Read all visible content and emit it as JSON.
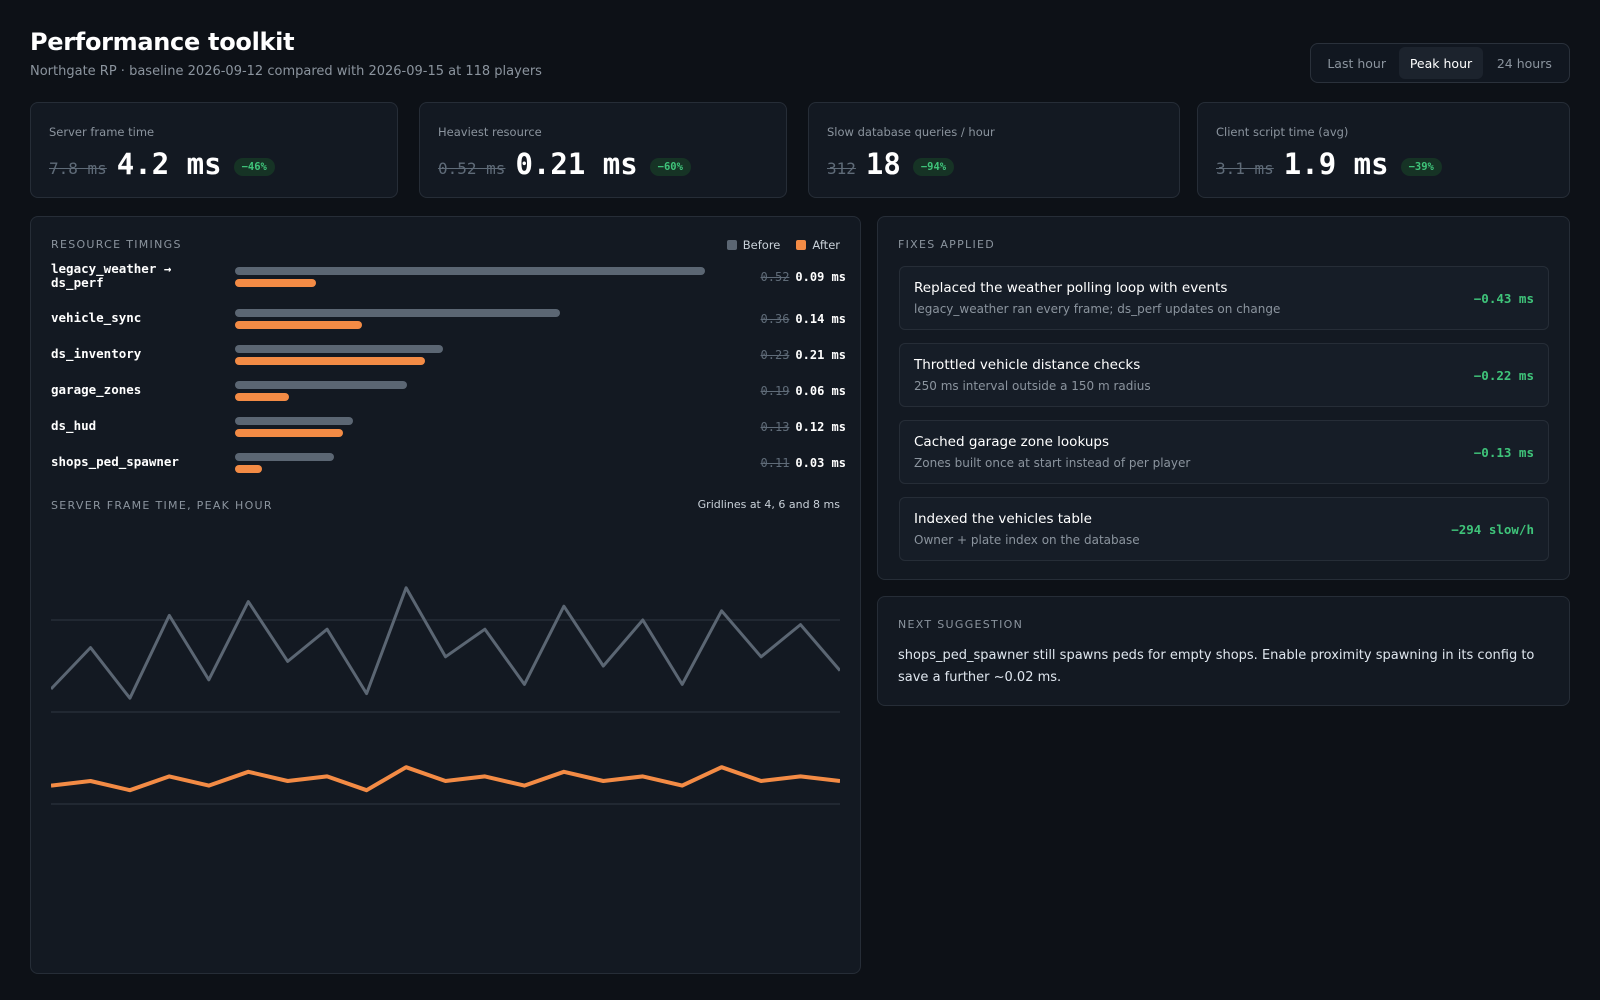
{
  "header": {
    "title": "Performance toolkit",
    "subtitle": "Northgate RP · baseline 2026-09-12 compared with 2026-09-15 at 118 players"
  },
  "range": {
    "options": [
      "Last hour",
      "Peak hour",
      "24 hours"
    ],
    "selected": "Peak hour"
  },
  "kpis": [
    {
      "label": "Server frame time",
      "before": "7.8 ms",
      "after": "4.2 ms",
      "change": "−46%"
    },
    {
      "label": "Heaviest resource",
      "before": "0.52 ms",
      "after": "0.21 ms",
      "change": "−60%"
    },
    {
      "label": "Slow database queries / hour",
      "before": "312",
      "after": "18",
      "change": "−94%"
    },
    {
      "label": "Client script time (avg)",
      "before": "3.1 ms",
      "after": "1.9 ms",
      "change": "−39%"
    }
  ],
  "resource_timings": {
    "title": "Resource timings",
    "legend": {
      "before": "Before",
      "after": "After"
    },
    "colors": {
      "before": "#5b6673",
      "after": "#f38b45"
    },
    "items": [
      {
        "name_line1": "legacy_weather →",
        "name_line2": "ds_perf",
        "before": 0.52,
        "after": 0.09,
        "before_label": "0.52",
        "after_label": "0.09 ms"
      },
      {
        "name_line1": "vehicle_sync",
        "name_line2": "",
        "before": 0.36,
        "after": 0.14,
        "before_label": "0.36",
        "after_label": "0.14 ms"
      },
      {
        "name_line1": "ds_inventory",
        "name_line2": "",
        "before": 0.23,
        "after": 0.21,
        "before_label": "0.23",
        "after_label": "0.21 ms"
      },
      {
        "name_line1": "garage_zones",
        "name_line2": "",
        "before": 0.19,
        "after": 0.06,
        "before_label": "0.19",
        "after_label": "0.06 ms"
      },
      {
        "name_line1": "ds_hud",
        "name_line2": "",
        "before": 0.13,
        "after": 0.12,
        "before_label": "0.13",
        "after_label": "0.12 ms"
      },
      {
        "name_line1": "shops_ped_spawner",
        "name_line2": "",
        "before": 0.11,
        "after": 0.03,
        "before_label": "0.11",
        "after_label": "0.03 ms"
      }
    ]
  },
  "chart_data": {
    "type": "line",
    "title": "Server frame time, peak hour",
    "note": "Gridlines at 4, 6 and 8 ms",
    "gridlines": [
      4,
      6,
      8
    ],
    "ylim": [
      4,
      8
    ],
    "grid": true,
    "series": [
      {
        "name": "Before",
        "color": "#5b6673",
        "values": [
          6.5,
          7.4,
          6.3,
          8.1,
          6.7,
          8.4,
          7.1,
          7.8,
          6.4,
          8.7,
          7.2,
          7.8,
          6.6,
          8.3,
          7.0,
          8.0,
          6.6,
          8.2,
          7.2,
          7.9,
          6.9
        ]
      },
      {
        "name": "After",
        "color": "#f38b45",
        "values": [
          4.4,
          4.5,
          4.3,
          4.6,
          4.4,
          4.7,
          4.5,
          4.6,
          4.3,
          4.8,
          4.5,
          4.6,
          4.4,
          4.7,
          4.5,
          4.6,
          4.4,
          4.8,
          4.5,
          4.6,
          4.5
        ]
      }
    ]
  },
  "fixes": {
    "title": "Fixes applied",
    "items": [
      {
        "title": "Replaced the weather polling loop with events",
        "desc": "legacy_weather ran every frame; ds_perf updates on change",
        "saving": "−0.43 ms"
      },
      {
        "title": "Throttled vehicle distance checks",
        "desc": "250 ms interval outside a 150 m radius",
        "saving": "−0.22 ms"
      },
      {
        "title": "Cached garage zone lookups",
        "desc": "Zones built once at start instead of per player",
        "saving": "−0.13 ms"
      },
      {
        "title": "Indexed the vehicles table",
        "desc": "Owner + plate index on the database",
        "saving": "−294 slow/h"
      }
    ]
  },
  "suggestion": {
    "title": "Next suggestion",
    "text": "shops_ped_spawner still spawns peds for empty shops. Enable proximity spawning in its config to save a further ~0.02 ms."
  }
}
